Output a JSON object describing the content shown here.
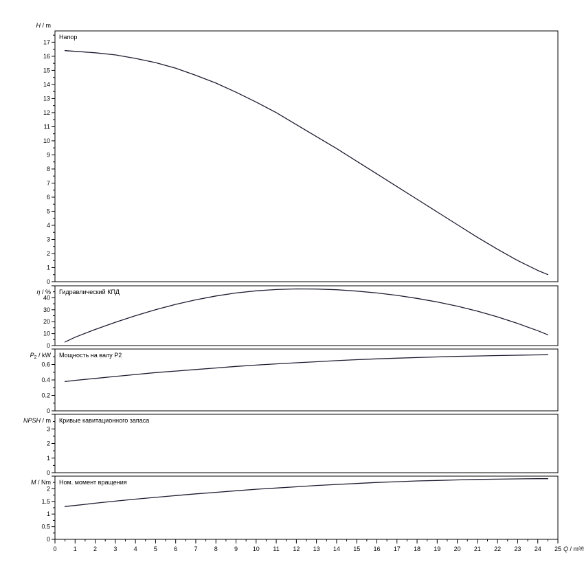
{
  "chart_data": {
    "type": "line",
    "background": "#ffffff",
    "axis_color": "#000000",
    "curve_color": "#1c1c30",
    "grid": false,
    "x_axis": {
      "label_var": "Q",
      "label_unit": "/ m³/h",
      "range": [
        0,
        25
      ],
      "tick_step": 1,
      "minor_step": 0.5,
      "tick_labels": [
        "0",
        "1",
        "2",
        "3",
        "4",
        "5",
        "6",
        "7",
        "8",
        "9",
        "10",
        "11",
        "12",
        "13",
        "14",
        "15",
        "16",
        "17",
        "18",
        "19",
        "20",
        "21",
        "22",
        "23",
        "24",
        "25"
      ]
    },
    "panels": [
      {
        "name": "head",
        "title": "Напор",
        "ylabel_var": "H",
        "ylabel_sub": "",
        "ylabel_unit": "/ m",
        "ylim": [
          0,
          17.8
        ],
        "label_step": 1,
        "minor_step": 0.5,
        "x": [
          0.5,
          1,
          2,
          3,
          4,
          5,
          6,
          7,
          8,
          9,
          10,
          11,
          12,
          13,
          14,
          15,
          16,
          17,
          18,
          19,
          20,
          21,
          22,
          23,
          24,
          24.5
        ],
        "y": [
          16.4,
          16.35,
          16.25,
          16.1,
          15.85,
          15.55,
          15.15,
          14.65,
          14.1,
          13.45,
          12.75,
          12.0,
          11.15,
          10.3,
          9.45,
          8.55,
          7.65,
          6.75,
          5.85,
          4.95,
          4.05,
          3.15,
          2.3,
          1.5,
          0.8,
          0.5
        ]
      },
      {
        "name": "efficiency",
        "title": "Гидравлический КПД",
        "ylabel_var": "η",
        "ylabel_sub": "",
        "ylabel_unit": "/ %",
        "ylim": [
          0,
          50
        ],
        "label_step": 10,
        "minor_step": 5,
        "x": [
          0.5,
          1,
          2,
          3,
          4,
          5,
          6,
          7,
          8,
          9,
          10,
          11,
          12,
          13,
          14,
          15,
          16,
          17,
          18,
          19,
          20,
          21,
          22,
          23,
          24,
          24.5
        ],
        "y": [
          3,
          7,
          13.5,
          19.5,
          25,
          30,
          34.5,
          38.3,
          41.5,
          44,
          45.8,
          46.9,
          47.4,
          47.3,
          46.7,
          45.6,
          44,
          42,
          39.5,
          36.5,
          33,
          28.8,
          24,
          18.5,
          12.5,
          9
        ]
      },
      {
        "name": "power",
        "title": "Мощность на валу P2",
        "ylabel_var": "P",
        "ylabel_sub": "2",
        "ylabel_unit": "/ kW",
        "ylim": [
          0,
          0.8
        ],
        "label_step": 0.2,
        "minor_step": 0.1,
        "x": [
          0.5,
          1,
          2,
          3,
          4,
          5,
          6,
          7,
          8,
          9,
          10,
          11,
          12,
          13,
          14,
          15,
          16,
          17,
          18,
          19,
          20,
          21,
          22,
          23,
          24,
          24.5
        ],
        "y": [
          0.38,
          0.395,
          0.42,
          0.445,
          0.47,
          0.495,
          0.515,
          0.535,
          0.555,
          0.575,
          0.592,
          0.608,
          0.622,
          0.636,
          0.65,
          0.662,
          0.673,
          0.682,
          0.69,
          0.698,
          0.705,
          0.71,
          0.716,
          0.72,
          0.724,
          0.726
        ]
      },
      {
        "name": "npsh",
        "title": "Кривые кавитационного запаса",
        "ylabel_var": "NPSH",
        "ylabel_sub": "",
        "ylabel_unit": "/ m",
        "ylim": [
          0,
          4
        ],
        "label_step": 1,
        "minor_step": 0.5,
        "x": [],
        "y": []
      },
      {
        "name": "torque",
        "title": "Ном. момент вращения",
        "ylabel_var": "M",
        "ylabel_sub": "",
        "ylabel_unit": "/ Nm",
        "ylim": [
          0,
          2.5
        ],
        "label_step": 0.5,
        "minor_step": 0.25,
        "x": [
          0.5,
          1,
          2,
          3,
          4,
          5,
          6,
          7,
          8,
          9,
          10,
          11,
          12,
          13,
          14,
          15,
          16,
          17,
          18,
          19,
          20,
          21,
          22,
          23,
          24,
          24.5
        ],
        "y": [
          1.3,
          1.34,
          1.43,
          1.51,
          1.59,
          1.66,
          1.73,
          1.8,
          1.86,
          1.92,
          1.98,
          2.03,
          2.08,
          2.13,
          2.17,
          2.21,
          2.25,
          2.28,
          2.31,
          2.33,
          2.35,
          2.37,
          2.38,
          2.39,
          2.4,
          2.4
        ]
      }
    ]
  }
}
